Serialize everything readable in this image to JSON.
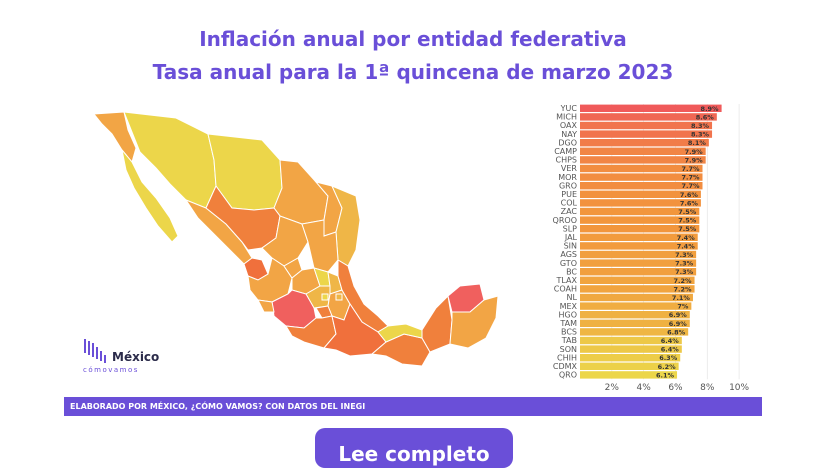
{
  "header": {
    "title": "Inflación anual por entidad federativa",
    "subtitle": "Tasa anual para la 1ª quincena de marzo 2023"
  },
  "logo": {
    "name": "México",
    "tagline": "cómovamos"
  },
  "footer": {
    "credit": "ELABORADO POR MÉXICO, ¿CÓMO VAMOS? CON DATOS DEL INEGI"
  },
  "cta": {
    "label": "Lee completo"
  },
  "colors": {
    "accent": "#6a4fd8",
    "high": "#f0605e",
    "mid": "#f2a545",
    "low": "#ecd64a"
  },
  "chart_data": {
    "type": "bar",
    "orientation": "horizontal",
    "title": "",
    "categories": [
      "YUC",
      "MICH",
      "OAX",
      "NAY",
      "DGO",
      "CAMP",
      "CHPS",
      "VER",
      "MOR",
      "GRO",
      "PUE",
      "COL",
      "ZAC",
      "QROO",
      "SLP",
      "JAL",
      "SIN",
      "AGS",
      "GTO",
      "BC",
      "TLAX",
      "COAH",
      "NL",
      "MEX",
      "HGO",
      "TAM",
      "BCS",
      "TAB",
      "SON",
      "CHIH",
      "CDMX",
      "QRO"
    ],
    "values": [
      8.9,
      8.6,
      8.3,
      8.3,
      8.1,
      7.9,
      7.9,
      7.7,
      7.7,
      7.7,
      7.6,
      7.6,
      7.5,
      7.5,
      7.5,
      7.4,
      7.4,
      7.3,
      7.3,
      7.3,
      7.2,
      7.2,
      7.1,
      7.0,
      6.9,
      6.9,
      6.8,
      6.4,
      6.4,
      6.3,
      6.2,
      6.1
    ],
    "labels": [
      "8.9%",
      "8.6%",
      "8.3%",
      "8.3%",
      "8.1%",
      "7.9%",
      "7.9%",
      "7.7%",
      "7.7%",
      "7.7%",
      "7.6%",
      "7.6%",
      "7.5%",
      "7.5%",
      "7.5%",
      "7.4%",
      "7.4%",
      "7.3%",
      "7.3%",
      "7.3%",
      "7.2%",
      "7.2%",
      "7.1%",
      "7%",
      "6.9%",
      "6.9%",
      "6.8%",
      "6.4%",
      "6.4%",
      "6.3%",
      "6.2%",
      "6.1%"
    ],
    "xticks": [
      "2%",
      "4%",
      "6%",
      "8%",
      "10%"
    ],
    "xtick_values": [
      2,
      4,
      6,
      8,
      10
    ],
    "xlim": [
      0,
      11
    ],
    "grid": true,
    "color_scale": "yellow (low) to red (high)"
  }
}
